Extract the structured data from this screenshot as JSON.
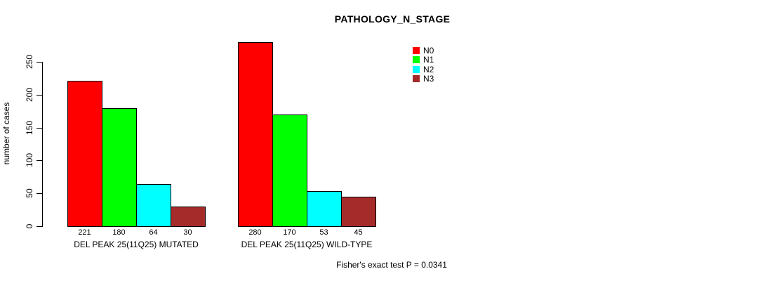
{
  "chart_data": {
    "type": "bar",
    "title": "PATHOLOGY_N_STAGE",
    "xlabel": "",
    "ylabel": "number of cases",
    "ylim": [
      0,
      250
    ],
    "yticks": [
      0,
      50,
      100,
      150,
      200,
      250
    ],
    "grid": false,
    "legend_position": "top-right",
    "series": [
      {
        "name": "N0",
        "color": "#ff0000"
      },
      {
        "name": "N1",
        "color": "#00ff00"
      },
      {
        "name": "N2",
        "color": "#00ffff"
      },
      {
        "name": "N3",
        "color": "#a52a2a"
      }
    ],
    "groups": [
      {
        "label": "DEL PEAK 25(11Q25) MUTATED",
        "values": [
          221,
          180,
          64,
          30
        ]
      },
      {
        "label": "DEL PEAK 25(11Q25) WILD-TYPE",
        "values": [
          280,
          170,
          53,
          45
        ]
      }
    ],
    "bar_value_labels_shown": true,
    "footer": "Fisher's exact test P = 0.0341"
  }
}
